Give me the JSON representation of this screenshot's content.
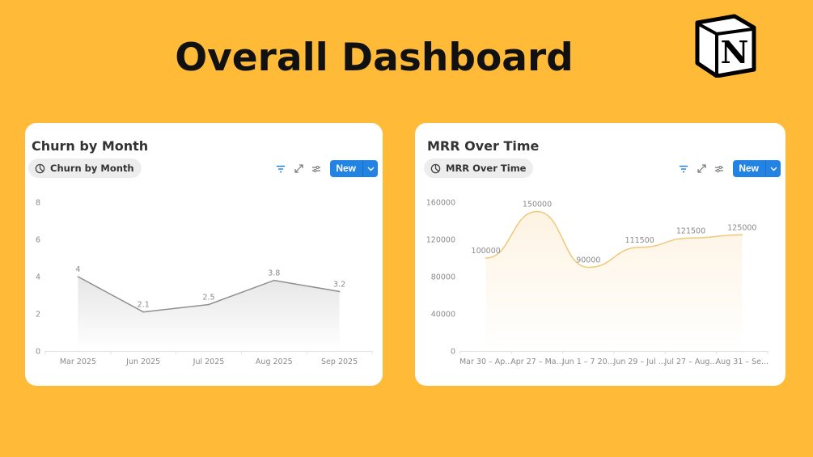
{
  "page_title": "Overall Dashboard",
  "logo": "Notion",
  "colors": {
    "background": "#FFBA38",
    "button": "#2383e2",
    "churn_line": "#8f8f8f",
    "mrr_line": "#f1c878"
  },
  "cards": [
    {
      "title": "Churn by Month",
      "view_label": "Churn by Month",
      "view_icon": "pie-chart-icon",
      "new_label": "New"
    },
    {
      "title": "MRR Over Time",
      "view_label": "MRR Over Time",
      "view_icon": "pie-chart-icon",
      "new_label": "New"
    }
  ],
  "chart_data": [
    {
      "type": "line",
      "title": "Churn by Month",
      "categories": [
        "Mar 2025",
        "Jun 2025",
        "Jul 2025",
        "Aug 2025",
        "Sep 2025"
      ],
      "values": [
        4,
        2.1,
        2.5,
        3.8,
        3.2
      ],
      "data_labels": [
        "4",
        "2.1",
        "2.5",
        "3.8",
        "3.2"
      ],
      "yticks": [
        "0",
        "2",
        "4",
        "6",
        "8"
      ],
      "ylim": [
        0,
        8
      ],
      "smooth": false,
      "xlabel": "",
      "ylabel": ""
    },
    {
      "type": "area",
      "title": "MRR Over Time",
      "categories": [
        "Mar 30 – Ap...",
        "Apr 27 – Ma...",
        "Jun 1 – 7 20...",
        "Jun 29 – Jul ...",
        "Jul 27 – Aug...",
        "Aug 31 – Se..."
      ],
      "values": [
        100000,
        150000,
        90000,
        111500,
        121500,
        125000
      ],
      "data_labels": [
        "100000",
        "150000",
        "90000",
        "111500",
        "121500",
        "125000"
      ],
      "yticks": [
        "0",
        "40000",
        "80000",
        "120000",
        "160000"
      ],
      "ylim": [
        0,
        160000
      ],
      "smooth": true,
      "xlabel": "",
      "ylabel": ""
    }
  ]
}
